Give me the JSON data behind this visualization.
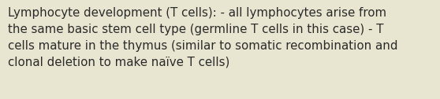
{
  "text": "Lymphocyte development (T cells): - all lymphocytes arise from\nthe same basic stem cell type (germline T cells in this case) - T\ncells mature in the thymus (similar to somatic recombination and\nclonal deletion to make naïve T cells)",
  "background_color": "#e8e5d0",
  "text_color": "#2b2b2b",
  "font_size": 10.8,
  "fig_width": 5.58,
  "fig_height": 1.26,
  "dpi": 100
}
